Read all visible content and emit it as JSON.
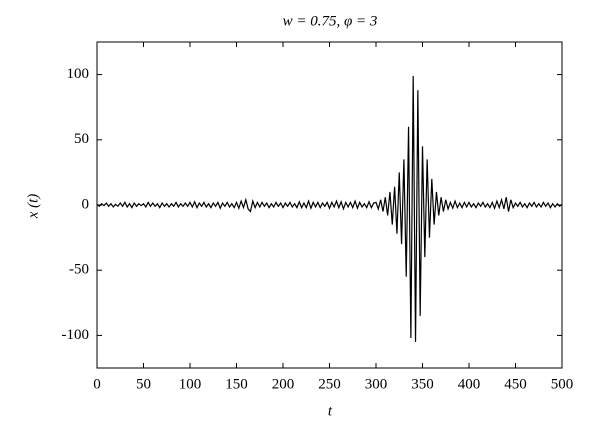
{
  "chart_data": {
    "type": "line",
    "title": "w = 0.75, φ = 3",
    "xlabel": "t",
    "ylabel": "x (t)",
    "x": [
      0,
      2.5,
      5,
      7.5,
      10,
      12.5,
      15,
      17.5,
      20,
      22.5,
      25,
      27.5,
      30,
      32.5,
      35,
      37.5,
      40,
      42.5,
      45,
      47.5,
      50,
      52.5,
      55,
      57.5,
      60,
      62.5,
      65,
      67.5,
      70,
      72.5,
      75,
      77.5,
      80,
      82.5,
      85,
      87.5,
      90,
      92.5,
      95,
      97.5,
      100,
      102.5,
      105,
      107.5,
      110,
      112.5,
      115,
      117.5,
      120,
      122.5,
      125,
      127.5,
      130,
      132.5,
      135,
      137.5,
      140,
      142.5,
      145,
      147.5,
      150,
      152.5,
      155,
      157.5,
      160,
      162.5,
      165,
      167.5,
      170,
      172.5,
      175,
      177.5,
      180,
      182.5,
      185,
      187.5,
      190,
      192.5,
      195,
      197.5,
      200,
      202.5,
      205,
      207.5,
      210,
      212.5,
      215,
      217.5,
      220,
      222.5,
      225,
      227.5,
      230,
      232.5,
      235,
      237.5,
      240,
      242.5,
      245,
      247.5,
      250,
      252.5,
      255,
      257.5,
      260,
      262.5,
      265,
      267.5,
      270,
      272.5,
      275,
      277.5,
      280,
      282.5,
      285,
      287.5,
      290,
      292.5,
      295,
      297.5,
      300,
      302.5,
      305,
      307.5,
      310,
      312.5,
      315,
      317.5,
      320,
      322.5,
      325,
      327.5,
      330,
      332.5,
      335,
      337.5,
      340,
      342.5,
      345,
      347.5,
      350,
      352.5,
      355,
      357.5,
      360,
      362.5,
      365,
      367.5,
      370,
      372.5,
      375,
      377.5,
      380,
      382.5,
      385,
      387.5,
      390,
      392.5,
      395,
      397.5,
      400,
      402.5,
      405,
      407.5,
      410,
      412.5,
      415,
      417.5,
      420,
      422.5,
      425,
      427.5,
      430,
      432.5,
      435,
      437.5,
      440,
      442.5,
      445,
      447.5,
      450,
      452.5,
      455,
      457.5,
      460,
      462.5,
      465,
      467.5,
      470,
      472.5,
      475,
      477.5,
      480,
      482.5,
      485,
      487.5,
      490,
      492.5,
      495,
      497.5,
      500
    ],
    "series": [
      {
        "color": "#000000",
        "values": [
          0.5,
          -1,
          1,
          -0.5,
          1.5,
          -1,
          1,
          -1.5,
          0.5,
          -1,
          1.5,
          -1,
          2,
          -1.5,
          1,
          -2,
          1.5,
          -1,
          1,
          -0.5,
          1,
          -1.5,
          2,
          -1,
          1.5,
          -1,
          1,
          -2,
          1.5,
          -1,
          1,
          -1.5,
          1,
          -1,
          2,
          -1.5,
          1,
          -1,
          1.5,
          -1,
          2,
          -1.5,
          2.5,
          -2,
          1.5,
          -1,
          2,
          -1.5,
          1,
          -2,
          1.5,
          -1,
          2,
          -2.5,
          1.5,
          -1,
          2,
          -1.5,
          1,
          -2,
          2,
          -2.5,
          3,
          -2,
          4,
          -3,
          -5,
          3,
          -2,
          2,
          -1.5,
          2,
          -1,
          1.5,
          -2,
          1,
          -1.5,
          2,
          -1,
          1.5,
          -2,
          1.5,
          -1,
          2,
          -1.5,
          1,
          -2,
          2.5,
          -2,
          1.5,
          -2,
          3,
          -2.5,
          2,
          -1.5,
          2,
          -2,
          1.5,
          -1,
          2,
          -2.5,
          2,
          -1.5,
          3,
          -2,
          2.5,
          -3,
          2,
          -1.5,
          2,
          -2,
          3,
          -2.5,
          2,
          -1.5,
          1,
          -2,
          2.5,
          -2,
          1.5,
          2,
          -3,
          4,
          -5,
          6,
          -8,
          10,
          -15,
          14,
          -22,
          25,
          -30,
          35,
          -55,
          60,
          -102,
          99,
          -105,
          88,
          -85,
          45,
          -40,
          35,
          -25,
          20,
          -15,
          10,
          -8,
          6,
          -5,
          4,
          -3,
          2,
          -2.5,
          3,
          -2,
          1.5,
          -2,
          2,
          -1.5,
          2,
          -1.5,
          1,
          -2,
          1.5,
          -1,
          2,
          -1.5,
          1,
          -2,
          2,
          -2.5,
          3,
          -2,
          4,
          -3,
          6,
          -5,
          4,
          -2,
          1.5,
          -1,
          2,
          -1.5,
          1,
          -2,
          1.5,
          -1,
          2,
          -1.5,
          1,
          -1.5,
          2,
          -1,
          1.5,
          -2,
          1,
          -1.5,
          1,
          -1,
          0.5
        ]
      }
    ],
    "xlim": [
      0,
      500
    ],
    "xticks": [
      0,
      50,
      100,
      150,
      200,
      250,
      300,
      350,
      400,
      450,
      500
    ],
    "ylim": [
      -125,
      125
    ],
    "yticks": [
      -100,
      -50,
      0,
      50,
      100
    ]
  }
}
